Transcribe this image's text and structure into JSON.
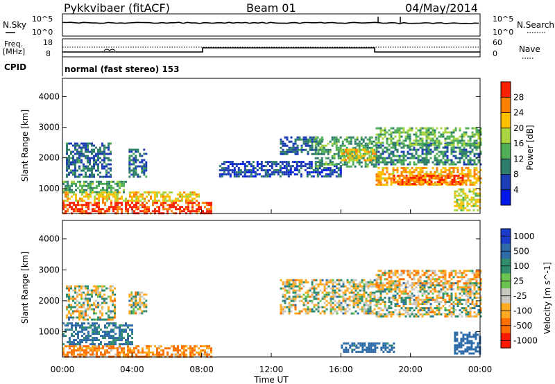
{
  "header": {
    "title": "Pykkvibaer (fitACF)",
    "beam": "Beam 01",
    "date": "04/May/2014"
  },
  "strips": {
    "nsky_label": "N.Sky",
    "nsearch_label": "N.Search",
    "noise_tick_top": "10^5",
    "noise_tick_bottom": "10^0",
    "freq_label": "Freq.",
    "freq_unit": "[MHz]",
    "freq_tick_top": "18",
    "freq_tick_bottom": "8",
    "nave_label": "Nave",
    "nave_tick_top": "60",
    "nave_tick_bottom": "0",
    "cpid_label": "CPID",
    "cpid_text": "normal (fast stereo) 153"
  },
  "axes": {
    "ylabel": "Slant Range [km]",
    "xlabel": "Time UT",
    "xticks": [
      "00:00",
      "04:00",
      "08:00",
      "12:00",
      "16:00",
      "20:00",
      "00:00"
    ],
    "yticks": [
      "1000",
      "2000",
      "3000",
      "4000"
    ]
  },
  "colorbars": {
    "power": {
      "label": "Power [dB]",
      "ticks": [
        "4",
        "8",
        "12",
        "16",
        "20",
        "24",
        "28"
      ],
      "colors": [
        "#0018e8",
        "#1c3cb4",
        "#2e7c6a",
        "#4fae56",
        "#a8d440",
        "#ffc000",
        "#ff8000",
        "#ff2000"
      ]
    },
    "velocity": {
      "label": "Velocity [m s^-1]",
      "ticks": [
        "1000",
        "500",
        "100",
        "25",
        "-25",
        "-100",
        "-500",
        "-1000"
      ],
      "colors": [
        "#1a3cc8",
        "#2c6aa8",
        "#2f8c6c",
        "#6cc450",
        "#c8c8c0",
        "#ffaa20",
        "#ff7000",
        "#ff1800"
      ]
    }
  },
  "chart_data": [
    {
      "type": "heatmap",
      "title": "Power",
      "x_range_hours": [
        0,
        24
      ],
      "y_range_km": [
        180,
        4600
      ],
      "zlabel": "Power [dB]",
      "z_range": [
        0,
        30
      ],
      "regions": [
        {
          "x0": 0.0,
          "x1": 8.6,
          "y0": 200,
          "y1": 560,
          "value": 28
        },
        {
          "x0": 0.0,
          "x1": 7.8,
          "y0": 560,
          "y1": 900,
          "value": 20
        },
        {
          "x0": 0.0,
          "x1": 3.6,
          "y0": 900,
          "y1": 1250,
          "value": 12
        },
        {
          "x0": 0.2,
          "x1": 2.8,
          "y0": 1400,
          "y1": 2500,
          "value": 8
        },
        {
          "x0": 3.8,
          "x1": 4.8,
          "y0": 1400,
          "y1": 2300,
          "value": 8
        },
        {
          "x0": 9.0,
          "x1": 16.0,
          "y0": 1400,
          "y1": 1900,
          "value": 6
        },
        {
          "x0": 12.5,
          "x1": 15.0,
          "y0": 2100,
          "y1": 2700,
          "value": 8
        },
        {
          "x0": 14.5,
          "x1": 18.0,
          "y0": 1700,
          "y1": 2700,
          "value": 12
        },
        {
          "x0": 16.0,
          "x1": 18.0,
          "y0": 1900,
          "y1": 2300,
          "value": 20
        },
        {
          "x0": 18.0,
          "x1": 24.0,
          "y0": 1100,
          "y1": 1700,
          "value": 22
        },
        {
          "x0": 19.0,
          "x1": 23.0,
          "y0": 1150,
          "y1": 1450,
          "value": 26
        },
        {
          "x0": 18.0,
          "x1": 24.0,
          "y0": 1800,
          "y1": 2500,
          "value": 10
        },
        {
          "x0": 18.0,
          "x1": 24.0,
          "y0": 2400,
          "y1": 3000,
          "value": 14
        },
        {
          "x0": 22.5,
          "x1": 24.0,
          "y0": 300,
          "y1": 1000,
          "value": 18
        }
      ]
    },
    {
      "type": "heatmap",
      "title": "Velocity",
      "x_range_hours": [
        0,
        24
      ],
      "y_range_km": [
        180,
        4600
      ],
      "zlabel": "Velocity [m s^-1]",
      "z_range": [
        -1000,
        1000
      ],
      "regions": [
        {
          "x0": 0.0,
          "x1": 8.6,
          "y0": 200,
          "y1": 560,
          "value": -120
        },
        {
          "x0": 0.0,
          "x1": 4.0,
          "y0": 560,
          "y1": 1300,
          "value": 150
        },
        {
          "x0": 0.2,
          "x1": 3.0,
          "y0": 1400,
          "y1": 2500,
          "value": 0
        },
        {
          "x0": 3.8,
          "x1": 4.8,
          "y0": 1600,
          "y1": 2300,
          "value": 0
        },
        {
          "x0": 12.5,
          "x1": 18.0,
          "y0": 1600,
          "y1": 2700,
          "value": 0
        },
        {
          "x0": 18.0,
          "x1": 24.0,
          "y0": 1500,
          "y1": 2600,
          "value": 0
        },
        {
          "x0": 18.0,
          "x1": 24.0,
          "y0": 2500,
          "y1": 3000,
          "value": -60
        },
        {
          "x0": 16.0,
          "x1": 19.0,
          "y0": 350,
          "y1": 650,
          "value": 200
        },
        {
          "x0": 22.5,
          "x1": 24.0,
          "y0": 300,
          "y1": 1000,
          "value": 300
        }
      ]
    }
  ]
}
